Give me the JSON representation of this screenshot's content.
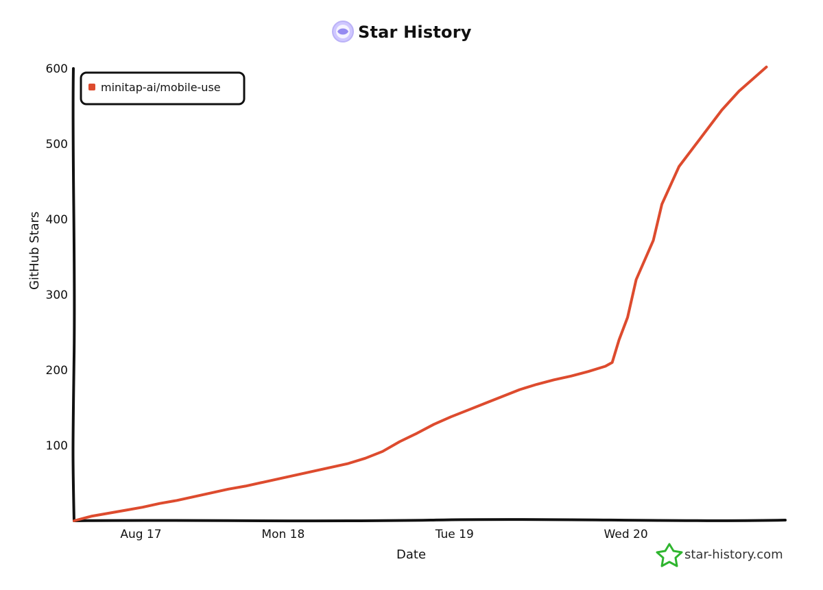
{
  "chart_data": {
    "type": "line",
    "title": "Star History",
    "xlabel": "Date",
    "ylabel": "GitHub Stars",
    "x_ticks": [
      {
        "label": "Aug 17",
        "x": 0.17
      },
      {
        "label": "Mon 18",
        "x": 1.0
      },
      {
        "label": "Tue 19",
        "x": 2.0
      },
      {
        "label": "Wed 20",
        "x": 3.0
      }
    ],
    "y_ticks": [
      100,
      200,
      300,
      400,
      500,
      600
    ],
    "xlim": [
      -0.22,
      3.93
    ],
    "ylim": [
      0,
      600
    ],
    "grid": false,
    "legend_position": "top-left",
    "series": [
      {
        "name": "minitap-ai/mobile-use",
        "color": "#dd4b2e",
        "points": [
          [
            -0.22,
            0
          ],
          [
            -0.12,
            6
          ],
          [
            -0.02,
            10
          ],
          [
            0.08,
            14
          ],
          [
            0.18,
            18
          ],
          [
            0.28,
            23
          ],
          [
            0.38,
            27
          ],
          [
            0.48,
            32
          ],
          [
            0.58,
            37
          ],
          [
            0.68,
            42
          ],
          [
            0.78,
            46
          ],
          [
            0.88,
            51
          ],
          [
            0.98,
            56
          ],
          [
            1.08,
            61
          ],
          [
            1.18,
            66
          ],
          [
            1.28,
            71
          ],
          [
            1.38,
            76
          ],
          [
            1.48,
            83
          ],
          [
            1.58,
            92
          ],
          [
            1.68,
            105
          ],
          [
            1.78,
            116
          ],
          [
            1.88,
            128
          ],
          [
            1.98,
            138
          ],
          [
            2.08,
            147
          ],
          [
            2.18,
            156
          ],
          [
            2.28,
            165
          ],
          [
            2.38,
            174
          ],
          [
            2.48,
            181
          ],
          [
            2.58,
            187
          ],
          [
            2.68,
            192
          ],
          [
            2.78,
            198
          ],
          [
            2.88,
            205
          ],
          [
            2.92,
            210
          ],
          [
            2.96,
            240
          ],
          [
            3.01,
            270
          ],
          [
            3.06,
            320
          ],
          [
            3.16,
            372
          ],
          [
            3.21,
            420
          ],
          [
            3.31,
            470
          ],
          [
            3.46,
            515
          ],
          [
            3.56,
            545
          ],
          [
            3.66,
            570
          ],
          [
            3.76,
            590
          ],
          [
            3.82,
            602
          ]
        ]
      }
    ]
  },
  "watermark": {
    "text": "star-history.com",
    "icon": "green-star-icon",
    "color": "#2fb52f"
  },
  "logo": {
    "icon": "star-history-logo-icon",
    "color": "#8f84f0"
  }
}
